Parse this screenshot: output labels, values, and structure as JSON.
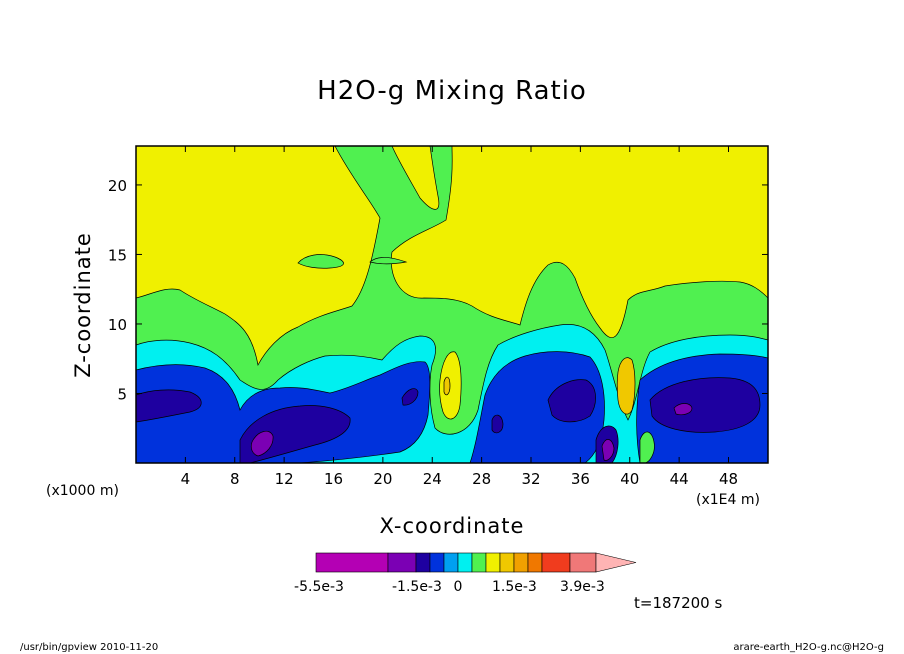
{
  "chart_data": {
    "type": "heatmap",
    "title": "H2O-g Mixing Ratio",
    "xlabel": "X-coordinate",
    "ylabel": "Z-coordinate",
    "x_ticks": [
      4,
      8,
      12,
      16,
      20,
      24,
      28,
      32,
      36,
      40,
      44,
      48
    ],
    "y_ticks": [
      5,
      10,
      15,
      20
    ],
    "xlim": [
      0,
      51.2
    ],
    "ylim": [
      0,
      22.8
    ],
    "x_units_left": "(x1000 m)",
    "x_units_right": "(x1E4 m)",
    "colorbar": {
      "labels": [
        "-5.5e-3",
        "-1.5e-3",
        "0",
        "1.5e-3",
        "3.9e-3"
      ],
      "colors": [
        "#b400b4",
        "#7b00b4",
        "#1e00a0",
        "#0032dc",
        "#00a0f0",
        "#00f0f0",
        "#50f050",
        "#f0f000",
        "#f0c800",
        "#f0a000",
        "#f07800",
        "#f03c1e",
        "#f07878",
        "#ffb4b4"
      ]
    },
    "time_label": "t=187200 s",
    "footer_left": "/usr/bin/gpview  2010-11-20",
    "footer_right": "arare-earth_H2O-g.nc@H2O-g"
  }
}
